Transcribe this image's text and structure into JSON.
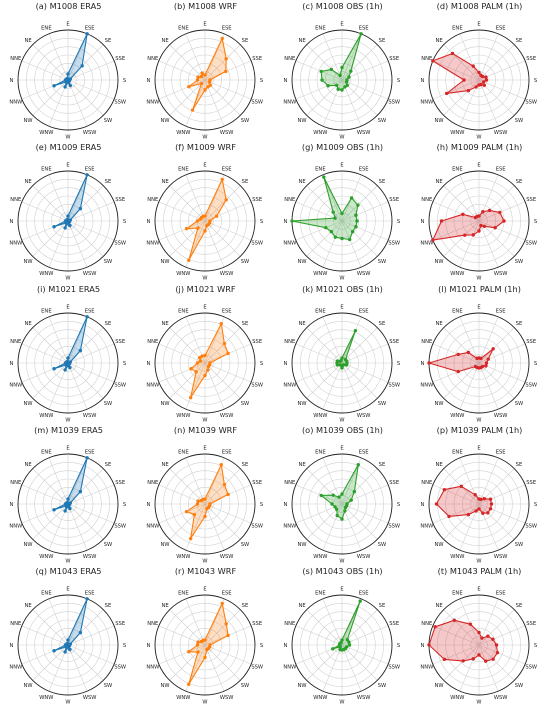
{
  "directions": [
    "E",
    "ENE",
    "NE",
    "NNE",
    "N",
    "NNW",
    "NW",
    "WNW",
    "W",
    "WSW",
    "SW",
    "SSW",
    "S",
    "SSE",
    "SE",
    "ESE"
  ],
  "chart_data": [
    {
      "type": "radar",
      "title": "(a) M1008 ERA5",
      "color": "#1f77b4",
      "values": [
        0.12,
        0.03,
        0.03,
        0.03,
        0.05,
        0.3,
        0.05,
        0.15,
        0.05,
        0.12,
        0.03,
        0.03,
        0.03,
        0.05,
        0.4,
        1.0
      ]
    },
    {
      "type": "radar",
      "title": "(b) M1008 WRF",
      "color": "#ff7f0e",
      "values": [
        0.1,
        0.15,
        0.1,
        0.15,
        0.15,
        0.35,
        0.1,
        0.65,
        0.2,
        0.15,
        0.15,
        0.1,
        0.1,
        0.45,
        0.6,
        0.9
      ]
    },
    {
      "type": "radar",
      "title": "(c) M1008 OBS (1h)",
      "color": "#2ca02c",
      "values": [
        0.25,
        0.1,
        0.3,
        0.45,
        0.4,
        0.3,
        0.15,
        0.2,
        0.2,
        0.15,
        0.15,
        0.1,
        0.1,
        0.15,
        0.25,
        1.0
      ]
    },
    {
      "type": "radar",
      "title": "(d) M1008 PALM (1h)",
      "color": "#d62728",
      "values": [
        0.15,
        0.3,
        0.75,
        1.0,
        0.3,
        0.7,
        0.3,
        0.15,
        0.1,
        0.1,
        0.15,
        0.1,
        0.15,
        0.15,
        0.1,
        0.1
      ]
    },
    {
      "type": "radar",
      "title": "(e) M1009 ERA5",
      "color": "#1f77b4",
      "values": [
        0.1,
        0.03,
        0.03,
        0.03,
        0.05,
        0.3,
        0.05,
        0.15,
        0.05,
        0.1,
        0.03,
        0.03,
        0.03,
        0.05,
        0.35,
        1.0
      ]
    },
    {
      "type": "radar",
      "title": "(f) M1009 WRF",
      "color": "#ff7f0e",
      "values": [
        0.1,
        0.1,
        0.1,
        0.1,
        0.15,
        0.4,
        0.2,
        0.85,
        0.2,
        0.1,
        0.1,
        0.1,
        0.1,
        0.25,
        0.6,
        0.9
      ]
    },
    {
      "type": "radar",
      "title": "(g) M1009 OBS (1h)",
      "color": "#2ca02c",
      "values": [
        0.15,
        0.95,
        0.25,
        0.15,
        1.0,
        0.35,
        0.3,
        0.35,
        0.35,
        0.4,
        0.3,
        0.3,
        0.3,
        0.3,
        0.45,
        0.5
      ]
    },
    {
      "type": "radar",
      "title": "(h) M1009 PALM (1h)",
      "color": "#d62728",
      "values": [
        0.1,
        0.1,
        0.1,
        0.35,
        0.75,
        1.0,
        0.4,
        0.3,
        0.2,
        0.1,
        0.15,
        0.35,
        0.5,
        0.45,
        0.3,
        0.2
      ]
    },
    {
      "type": "radar",
      "title": "(i) M1021 ERA5",
      "color": "#1f77b4",
      "values": [
        0.1,
        0.03,
        0.03,
        0.03,
        0.05,
        0.3,
        0.05,
        0.15,
        0.05,
        0.1,
        0.03,
        0.03,
        0.03,
        0.05,
        0.35,
        1.0
      ]
    },
    {
      "type": "radar",
      "title": "(j) M1021 WRF",
      "color": "#ff7f0e",
      "values": [
        0.15,
        0.15,
        0.15,
        0.1,
        0.15,
        0.3,
        0.25,
        0.75,
        0.25,
        0.15,
        0.1,
        0.1,
        0.1,
        0.5,
        0.55,
        0.85
      ]
    },
    {
      "type": "radar",
      "title": "(k) M1021 OBS (1h)",
      "color": "#2ca02c",
      "values": [
        0.1,
        0.05,
        0.05,
        0.1,
        0.1,
        0.1,
        0.05,
        0.05,
        0.1,
        0.05,
        0.05,
        0.1,
        0.1,
        0.1,
        0.1,
        0.7
      ]
    },
    {
      "type": "radar",
      "title": "(l) M1021 PALM (1h)",
      "color": "#d62728",
      "values": [
        0.1,
        0.1,
        0.3,
        0.45,
        1.0,
        0.45,
        0.1,
        0.1,
        0.1,
        0.1,
        0.1,
        0.15,
        0.15,
        0.2,
        0.4,
        0.1
      ]
    },
    {
      "type": "radar",
      "title": "(m) M1039 ERA5",
      "color": "#1f77b4",
      "values": [
        0.1,
        0.03,
        0.03,
        0.03,
        0.05,
        0.3,
        0.05,
        0.15,
        0.05,
        0.1,
        0.03,
        0.03,
        0.03,
        0.05,
        0.35,
        1.0
      ]
    },
    {
      "type": "radar",
      "title": "(n) M1039 WRF",
      "color": "#ff7f0e",
      "values": [
        0.1,
        0.1,
        0.1,
        0.15,
        0.15,
        0.4,
        0.3,
        0.75,
        0.25,
        0.1,
        0.1,
        0.1,
        0.1,
        0.5,
        0.55,
        0.85
      ]
    },
    {
      "type": "radar",
      "title": "(o) M1039 OBS (1h)",
      "color": "#2ca02c",
      "values": [
        0.2,
        0.15,
        0.25,
        0.45,
        0.2,
        0.15,
        0.15,
        0.25,
        0.3,
        0.15,
        0.1,
        0.1,
        0.1,
        0.2,
        0.35,
        0.85
      ]
    },
    {
      "type": "radar",
      "title": "(p) M1039 PALM (1h)",
      "color": "#d62728",
      "values": [
        0.1,
        0.2,
        0.5,
        0.75,
        0.85,
        0.65,
        0.3,
        0.15,
        0.1,
        0.2,
        0.25,
        0.25,
        0.25,
        0.25,
        0.15,
        0.1
      ]
    },
    {
      "type": "radar",
      "title": "(q) M1043 ERA5",
      "color": "#1f77b4",
      "values": [
        0.1,
        0.03,
        0.03,
        0.03,
        0.05,
        0.3,
        0.05,
        0.15,
        0.05,
        0.1,
        0.03,
        0.03,
        0.03,
        0.05,
        0.35,
        1.0
      ]
    },
    {
      "type": "radar",
      "title": "(r) M1043 WRF",
      "color": "#ff7f0e",
      "values": [
        0.1,
        0.1,
        0.1,
        0.15,
        0.15,
        0.35,
        0.2,
        0.85,
        0.25,
        0.1,
        0.1,
        0.1,
        0.1,
        0.5,
        0.6,
        0.9
      ]
    },
    {
      "type": "radar",
      "title": "(s) M1043 OBS (1h)",
      "color": "#2ca02c",
      "values": [
        0.1,
        0.05,
        0.05,
        0.05,
        0.05,
        0.2,
        0.05,
        0.1,
        0.1,
        0.1,
        0.1,
        0.1,
        0.15,
        0.15,
        0.15,
        0.95
      ]
    },
    {
      "type": "radar",
      "title": "(t) M1043 PALM (1h)",
      "color": "#d62728",
      "values": [
        0.25,
        0.45,
        0.7,
        0.95,
        1.0,
        0.75,
        0.45,
        0.3,
        0.2,
        0.35,
        0.4,
        0.4,
        0.35,
        0.3,
        0.25,
        0.15
      ]
    }
  ]
}
